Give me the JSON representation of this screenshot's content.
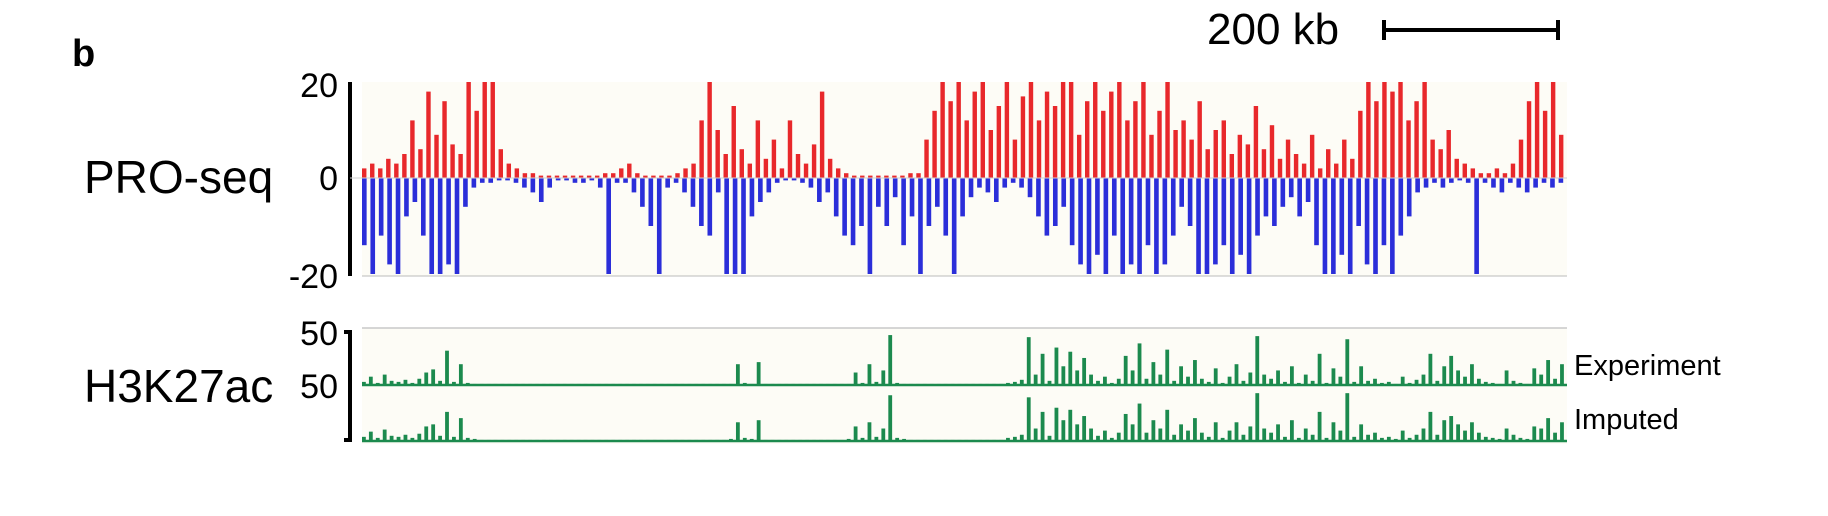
{
  "panel_label": "b",
  "scale_bar": {
    "label": "200 kb"
  },
  "colors": {
    "plus_strand": "#e8282b",
    "minus_strand": "#2b2ed9",
    "signal": "#1c8a4e",
    "track_bg": "#fdfcf6"
  },
  "chart_data": [
    {
      "type": "bar",
      "track": "PRO-seq",
      "ylim": [
        -20,
        20
      ],
      "y_ticks": [
        "20",
        "0",
        "-20"
      ],
      "series": [
        {
          "strand": "plus",
          "color": "#e8282b",
          "values": [
            2,
            3,
            2,
            4,
            3,
            5,
            12,
            6,
            18,
            9,
            16,
            7,
            5,
            20,
            14,
            20,
            20,
            6,
            3,
            2,
            1,
            1,
            0.5,
            0.5,
            0.5,
            0.5,
            0.5,
            0.5,
            0.5,
            0.5,
            1,
            1,
            2,
            3,
            1,
            0.5,
            0.5,
            0.5,
            0.5,
            1,
            2,
            3,
            12,
            20,
            10,
            5,
            15,
            6,
            3,
            12,
            4,
            8,
            2,
            12,
            5,
            3,
            7,
            18,
            4,
            2,
            1,
            0.5,
            0.5,
            0.5,
            0.5,
            0.5,
            0.5,
            0.5,
            1,
            1,
            8,
            14,
            20,
            16,
            20,
            12,
            18,
            20,
            10,
            15,
            20,
            8,
            17,
            20,
            12,
            18,
            15,
            20,
            20,
            9,
            16,
            20,
            14,
            18,
            20,
            12,
            16,
            20,
            9,
            14,
            20,
            10,
            12,
            8,
            16,
            6,
            10,
            12,
            5,
            9,
            7,
            15,
            6,
            11,
            4,
            8,
            5,
            3,
            9,
            2,
            6,
            3,
            8,
            4,
            14,
            20,
            16,
            20,
            18,
            20,
            12,
            16,
            20,
            8,
            6,
            10,
            4,
            3,
            2,
            1,
            1,
            2,
            1,
            3,
            8,
            16,
            20,
            14,
            20,
            9
          ]
        },
        {
          "strand": "minus",
          "color": "#2b2ed9",
          "values": [
            -14,
            -20,
            -12,
            -18,
            -20,
            -8,
            -5,
            -12,
            -20,
            -20,
            -18,
            -20,
            -6,
            -2,
            -1,
            -1,
            -0.5,
            -0.5,
            -1,
            -2,
            -3,
            -5,
            -2,
            -0.5,
            -0.5,
            -1,
            -1,
            -0.5,
            -2,
            -20,
            -1,
            -1,
            -3,
            -6,
            -10,
            -20,
            -2,
            -1,
            -3,
            -6,
            -10,
            -12,
            -3,
            -20,
            -20,
            -20,
            -8,
            -5,
            -3,
            -1,
            -0.5,
            -0.5,
            -1,
            -2,
            -5,
            -3,
            -8,
            -12,
            -14,
            -10,
            -20,
            -6,
            -10,
            -4,
            -14,
            -8,
            -20,
            -10,
            -6,
            -12,
            -20,
            -8,
            -4,
            -2,
            -3,
            -5,
            -2,
            -1,
            -2,
            -4,
            -8,
            -12,
            -10,
            -6,
            -14,
            -18,
            -20,
            -16,
            -20,
            -12,
            -20,
            -18,
            -20,
            -14,
            -20,
            -18,
            -12,
            -6,
            -10,
            -20,
            -20,
            -18,
            -14,
            -20,
            -16,
            -20,
            -12,
            -8,
            -10,
            -6,
            -4,
            -8,
            -5,
            -14,
            -20,
            -20,
            -16,
            -20,
            -10,
            -18,
            -20,
            -14,
            -20,
            -12,
            -8,
            -3,
            -2,
            -1,
            -2,
            -1,
            -0.5,
            -1,
            -20,
            -1,
            -2,
            -3,
            -1,
            -2,
            -3,
            -2,
            -1,
            -2,
            -1
          ]
        }
      ]
    },
    {
      "type": "bar",
      "track": "H3K27ac",
      "y_ticks": [
        "50",
        "50"
      ],
      "tracks": [
        {
          "name": "Experiment",
          "color": "#1c8a4e",
          "ylim": [
            0,
            50
          ],
          "values": [
            3,
            8,
            2,
            10,
            4,
            3,
            5,
            2,
            6,
            12,
            15,
            4,
            33,
            3,
            20,
            2,
            1,
            1,
            1,
            1,
            1,
            1,
            1,
            1,
            1,
            1,
            1,
            1,
            1,
            1,
            1,
            1,
            1,
            1,
            1,
            1,
            1,
            1,
            1,
            1,
            1,
            1,
            1,
            1,
            1,
            1,
            1,
            1,
            1,
            1,
            1,
            1,
            1,
            1,
            20,
            2,
            1,
            22,
            1,
            1,
            1,
            1,
            1,
            1,
            1,
            1,
            1,
            1,
            1,
            1,
            1,
            12,
            2,
            20,
            3,
            14,
            48,
            2,
            1,
            1,
            1,
            1,
            1,
            1,
            1,
            1,
            1,
            1,
            1,
            1,
            1,
            1,
            1,
            2,
            3,
            5,
            46,
            10,
            30,
            4,
            36,
            18,
            32,
            14,
            26,
            10,
            4,
            8,
            2,
            6,
            28,
            14,
            40,
            6,
            22,
            10,
            34,
            4,
            18,
            8,
            24,
            6,
            3,
            16,
            2,
            8,
            20,
            4,
            12,
            47,
            10,
            6,
            14,
            3,
            18,
            2,
            10,
            4,
            30,
            2,
            16,
            8,
            44,
            3,
            18,
            4,
            6,
            2,
            3,
            1,
            8,
            2,
            5,
            10,
            30,
            4,
            18,
            28,
            14,
            8,
            20,
            6,
            3,
            2,
            1,
            14,
            4,
            2,
            1,
            16,
            10,
            24,
            6,
            20
          ]
        },
        {
          "name": "Imputed",
          "color": "#1c8a4e",
          "ylim": [
            0,
            50
          ],
          "values": [
            4,
            9,
            3,
            11,
            5,
            4,
            6,
            3,
            7,
            14,
            16,
            5,
            28,
            4,
            22,
            3,
            2,
            1,
            1,
            1,
            1,
            1,
            1,
            1,
            1,
            1,
            1,
            1,
            1,
            1,
            1,
            1,
            1,
            1,
            1,
            1,
            1,
            1,
            1,
            1,
            1,
            1,
            1,
            1,
            1,
            1,
            1,
            1,
            1,
            1,
            1,
            1,
            1,
            2,
            18,
            3,
            2,
            20,
            1,
            1,
            1,
            1,
            1,
            1,
            1,
            1,
            1,
            1,
            1,
            1,
            2,
            14,
            3,
            18,
            4,
            12,
            44,
            3,
            2,
            1,
            1,
            1,
            1,
            1,
            1,
            1,
            1,
            1,
            1,
            1,
            1,
            1,
            1,
            3,
            4,
            6,
            42,
            12,
            28,
            5,
            32,
            20,
            30,
            16,
            24,
            12,
            5,
            10,
            3,
            8,
            26,
            16,
            36,
            8,
            20,
            12,
            30,
            6,
            16,
            10,
            22,
            8,
            4,
            18,
            3,
            10,
            18,
            6,
            14,
            46,
            12,
            8,
            16,
            4,
            20,
            3,
            12,
            6,
            28,
            3,
            18,
            10,
            46,
            4,
            16,
            6,
            8,
            3,
            4,
            2,
            10,
            3,
            6,
            12,
            28,
            6,
            20,
            24,
            16,
            10,
            18,
            8,
            4,
            3,
            2,
            12,
            6,
            3,
            2,
            14,
            12,
            22,
            8,
            18
          ]
        }
      ]
    }
  ]
}
